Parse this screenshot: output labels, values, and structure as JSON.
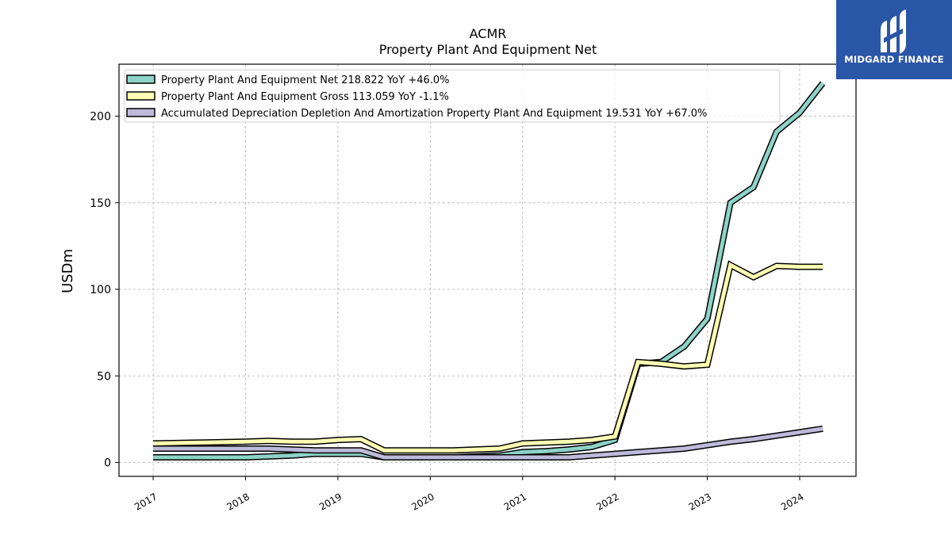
{
  "title_line1": "ACMR",
  "title_line2": "Property Plant And Equipment Net",
  "logo_text": "MIDGARD FINANCE",
  "chart_data": {
    "type": "line",
    "ylabel": "USDm",
    "ylim": [
      -8,
      230
    ],
    "yticks": [
      0,
      50,
      100,
      150,
      200
    ],
    "xlim": [
      2016.63,
      2024.61
    ],
    "xticks": [
      2017,
      2018,
      2019,
      2020,
      2021,
      2022,
      2023,
      2024
    ],
    "grid": true,
    "legend_position": "top-left",
    "series": [
      {
        "name": "Property Plant And Equipment Net",
        "legend_label": "Property Plant And Equipment Net  218.822 YoY +46.0%",
        "color": "#8dd3c7",
        "points": [
          [
            2017.0,
            3
          ],
          [
            2017.5,
            3
          ],
          [
            2018.0,
            3
          ],
          [
            2018.25,
            3.5
          ],
          [
            2018.5,
            4
          ],
          [
            2018.75,
            5
          ],
          [
            2019.0,
            5
          ],
          [
            2019.25,
            5
          ],
          [
            2019.5,
            3
          ],
          [
            2019.75,
            3
          ],
          [
            2020.0,
            3
          ],
          [
            2020.25,
            3
          ],
          [
            2020.5,
            3.5
          ],
          [
            2020.75,
            4
          ],
          [
            2021.0,
            6
          ],
          [
            2021.25,
            6.5
          ],
          [
            2021.5,
            7.5
          ],
          [
            2021.75,
            9
          ],
          [
            2022.0,
            13
          ],
          [
            2022.25,
            57
          ],
          [
            2022.5,
            58
          ],
          [
            2022.75,
            67
          ],
          [
            2023.0,
            83
          ],
          [
            2023.25,
            150
          ],
          [
            2023.5,
            159
          ],
          [
            2023.75,
            191
          ],
          [
            2024.0,
            202
          ],
          [
            2024.25,
            219
          ]
        ]
      },
      {
        "name": "Property Plant And Equipment Gross",
        "legend_label": "Property Plant And Equipment Gross  113.059 YoY -1.1%",
        "color": "#ffffb3",
        "points": [
          [
            2017.0,
            11
          ],
          [
            2017.5,
            11.5
          ],
          [
            2018.0,
            12
          ],
          [
            2018.25,
            12.5
          ],
          [
            2018.5,
            12
          ],
          [
            2018.75,
            12
          ],
          [
            2019.0,
            13
          ],
          [
            2019.25,
            13.5
          ],
          [
            2019.5,
            7
          ],
          [
            2019.75,
            7
          ],
          [
            2020.0,
            7
          ],
          [
            2020.25,
            7
          ],
          [
            2020.5,
            7.5
          ],
          [
            2020.75,
            8
          ],
          [
            2021.0,
            11
          ],
          [
            2021.25,
            11.5
          ],
          [
            2021.5,
            12
          ],
          [
            2021.75,
            13
          ],
          [
            2022.0,
            15
          ],
          [
            2022.25,
            58
          ],
          [
            2022.5,
            57
          ],
          [
            2022.75,
            55.5
          ],
          [
            2023.0,
            56.5
          ],
          [
            2023.25,
            114
          ],
          [
            2023.5,
            107
          ],
          [
            2023.75,
            113.5
          ],
          [
            2024.0,
            113
          ],
          [
            2024.25,
            113
          ]
        ]
      },
      {
        "name": "Accumulated Depreciation Depletion And Amortization Property Plant And Equipment",
        "legend_label": "Accumulated Depreciation Depletion And Amortization Property Plant And Equipment  19.531 YoY +67.0%",
        "color": "#bebada",
        "points": [
          [
            2017.0,
            8
          ],
          [
            2017.5,
            8
          ],
          [
            2018.0,
            8
          ],
          [
            2018.25,
            8
          ],
          [
            2018.5,
            7.5
          ],
          [
            2018.75,
            7
          ],
          [
            2019.0,
            7
          ],
          [
            2019.25,
            7
          ],
          [
            2019.5,
            3
          ],
          [
            2019.75,
            3
          ],
          [
            2020.0,
            3
          ],
          [
            2020.25,
            3
          ],
          [
            2020.5,
            3
          ],
          [
            2020.75,
            3
          ],
          [
            2021.0,
            3
          ],
          [
            2021.25,
            3
          ],
          [
            2021.5,
            3
          ],
          [
            2021.75,
            4
          ],
          [
            2022.0,
            5
          ],
          [
            2022.25,
            6
          ],
          [
            2022.5,
            7
          ],
          [
            2022.75,
            8
          ],
          [
            2023.0,
            10
          ],
          [
            2023.25,
            12
          ],
          [
            2023.5,
            13.5
          ],
          [
            2023.75,
            15.5
          ],
          [
            2024.0,
            17.5
          ],
          [
            2024.25,
            19.5
          ]
        ]
      }
    ]
  }
}
